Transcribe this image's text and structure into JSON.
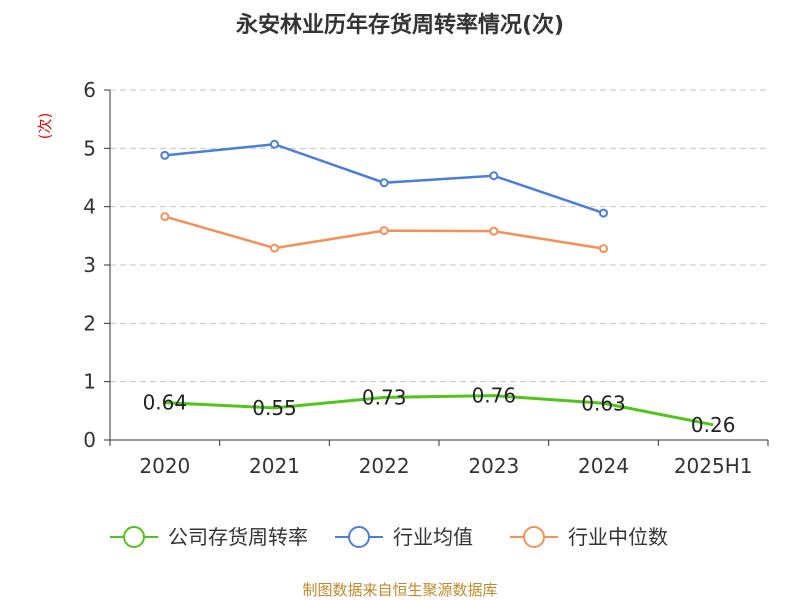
{
  "chart_data": {
    "type": "line",
    "title": "永安林业历年存货周转率情况(次)",
    "ylabel": "(次)",
    "xlabel": "",
    "categories": [
      "2020",
      "2021",
      "2022",
      "2023",
      "2024",
      "2025H1"
    ],
    "ylim": [
      0,
      6
    ],
    "yticks": [
      "0",
      "1",
      "2",
      "3",
      "4",
      "5",
      "6"
    ],
    "grid": true,
    "legend_position": "bottom",
    "series": [
      {
        "name": "公司存货周转率",
        "color": "#52c41a",
        "values": [
          0.64,
          0.55,
          0.73,
          0.76,
          0.63,
          0.26
        ],
        "labels": [
          "0.64",
          "0.55",
          "0.73",
          "0.76",
          "0.63",
          "0.26"
        ]
      },
      {
        "name": "行业均值",
        "color": "#4a7fd8",
        "values": [
          4.88,
          5.07,
          4.41,
          4.53,
          3.89,
          null
        ]
      },
      {
        "name": "行业中位数",
        "color": "#f59158",
        "values": [
          3.83,
          3.29,
          3.59,
          3.58,
          3.28,
          null
        ]
      }
    ],
    "source": "制图数据来自恒生聚源数据库"
  }
}
